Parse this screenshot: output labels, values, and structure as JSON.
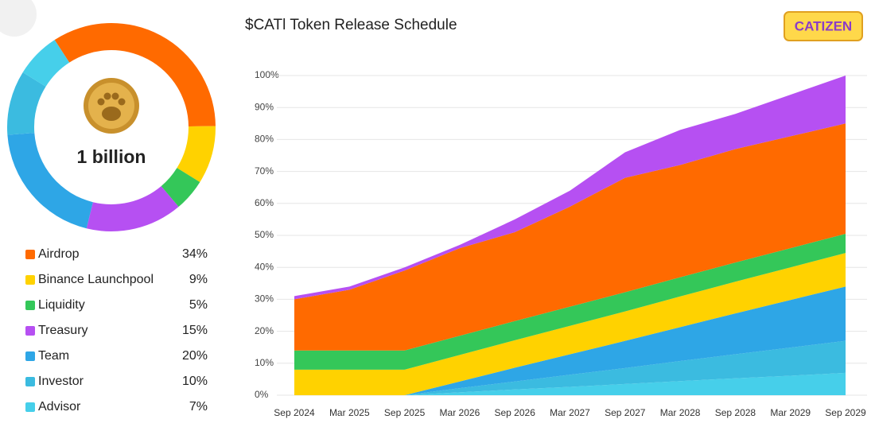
{
  "logo": "CATIZEN",
  "chart_data": [
    {
      "type": "donut",
      "center_text": "1 billion",
      "categories": [
        "Airdrop",
        "Binance Launchpool",
        "Liquidity",
        "Treasury",
        "Team",
        "Investor",
        "Advisor"
      ],
      "values": [
        34,
        9,
        5,
        15,
        20,
        10,
        7
      ],
      "value_labels": [
        "34%",
        "9%",
        "5%",
        "15%",
        "20%",
        "10%",
        "7%"
      ],
      "colors": [
        "#ff6a00",
        "#ffd200",
        "#34c759",
        "#b650f2",
        "#2ea6e6",
        "#3bbbe0",
        "#46cfea"
      ]
    },
    {
      "type": "stacked-area",
      "title": "$CATl Token Release Schedule",
      "categories": [
        "Sep 2024",
        "Mar 2025",
        "Sep 2025",
        "Mar 2026",
        "Sep 2026",
        "Mar 2027",
        "Sep 2027",
        "Mar 2028",
        "Sep 2028",
        "Mar 2029",
        "Sep 2029"
      ],
      "series": [
        {
          "color": "#46cfea",
          "values": [
            0,
            0,
            0,
            0.9,
            1.8,
            2.6,
            3.5,
            4.4,
            5.3,
            6.1,
            7
          ]
        },
        {
          "color": "#3bbbe0",
          "values": [
            0,
            0,
            0,
            1.3,
            2.5,
            3.8,
            5,
            6.3,
            7.5,
            8.8,
            10
          ]
        },
        {
          "color": "#2ea6e6",
          "values": [
            0,
            0,
            0,
            2.1,
            4.3,
            6.4,
            8.5,
            10.6,
            12.8,
            14.9,
            17
          ]
        },
        {
          "color": "#ffd200",
          "values": [
            8,
            8,
            8,
            8.3,
            8.6,
            8.9,
            9.2,
            9.6,
            9.9,
            10.2,
            10.5
          ]
        },
        {
          "color": "#34c759",
          "values": [
            6,
            6,
            6,
            6,
            6,
            6,
            6,
            6,
            6,
            6,
            6
          ]
        },
        {
          "color": "#ff6a00",
          "values": [
            16,
            19,
            25,
            27.4,
            27.8,
            31.3,
            35.8,
            35.1,
            35.5,
            35,
            34.5
          ]
        },
        {
          "color": "#b650f2",
          "values": [
            1,
            1,
            1,
            1,
            4,
            5,
            8,
            11,
            11,
            13,
            15
          ]
        }
      ],
      "ylim": [
        0,
        100
      ],
      "yticks": [
        {
          "value": 0,
          "label": "0%"
        },
        {
          "value": 10,
          "label": "10%"
        },
        {
          "value": 20,
          "label": "20%"
        },
        {
          "value": 30,
          "label": "30%"
        },
        {
          "value": 40,
          "label": "40%"
        },
        {
          "value": 50,
          "label": "50%"
        },
        {
          "value": 60,
          "label": "60%"
        },
        {
          "value": 70,
          "label": "70%"
        },
        {
          "value": 80,
          "label": "80%"
        },
        {
          "value": 90,
          "label": "90%"
        },
        {
          "value": 100,
          "label": "100%"
        }
      ],
      "grid": true
    }
  ]
}
